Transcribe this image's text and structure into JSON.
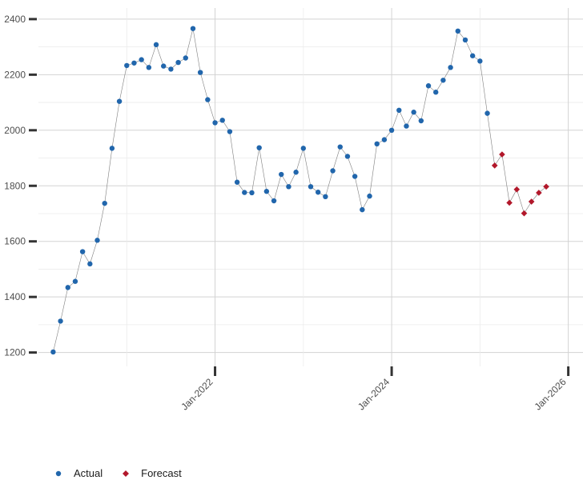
{
  "chart_data": {
    "type": "line",
    "title": "",
    "xlabel": "",
    "ylabel": "",
    "y_ticks": [
      1200,
      1400,
      1600,
      1800,
      2000,
      2200,
      2400
    ],
    "x_ticks": [
      "Jan-2022",
      "Jan-2024",
      "Jan-2026"
    ],
    "ylim": [
      1150,
      2440
    ],
    "xlim": [
      "2020-01",
      "2026-03"
    ],
    "grid": true,
    "legend_position": "bottom-left",
    "colors": {
      "actual": "#2166ac",
      "forecast": "#b2182b",
      "line": "#7f7f7f"
    },
    "series": [
      {
        "name": "Actual",
        "marker": "circle",
        "points": [
          [
            "2020-03",
            1202
          ],
          [
            "2020-04",
            1313
          ],
          [
            "2020-05",
            1434
          ],
          [
            "2020-06",
            1456
          ],
          [
            "2020-07",
            1563
          ],
          [
            "2020-08",
            1519
          ],
          [
            "2020-09",
            1604
          ],
          [
            "2020-10",
            1737
          ],
          [
            "2020-11",
            1935
          ],
          [
            "2020-12",
            2104
          ],
          [
            "2021-01",
            2233
          ],
          [
            "2021-02",
            2242
          ],
          [
            "2021-03",
            2254
          ],
          [
            "2021-04",
            2226
          ],
          [
            "2021-05",
            2308
          ],
          [
            "2021-06",
            2231
          ],
          [
            "2021-07",
            2220
          ],
          [
            "2021-08",
            2244
          ],
          [
            "2021-09",
            2260
          ],
          [
            "2021-10",
            2366
          ],
          [
            "2021-11",
            2208
          ],
          [
            "2021-12",
            2110
          ],
          [
            "2022-01",
            2027
          ],
          [
            "2022-02",
            2036
          ],
          [
            "2022-03",
            1995
          ],
          [
            "2022-04",
            1813
          ],
          [
            "2022-05",
            1776
          ],
          [
            "2022-06",
            1775
          ],
          [
            "2022-07",
            1937
          ],
          [
            "2022-08",
            1780
          ],
          [
            "2022-09",
            1746
          ],
          [
            "2022-10",
            1841
          ],
          [
            "2022-11",
            1797
          ],
          [
            "2022-12",
            1849
          ],
          [
            "2023-01",
            1935
          ],
          [
            "2023-02",
            1797
          ],
          [
            "2023-03",
            1777
          ],
          [
            "2023-04",
            1761
          ],
          [
            "2023-05",
            1854
          ],
          [
            "2023-06",
            1940
          ],
          [
            "2023-07",
            1906
          ],
          [
            "2023-08",
            1834
          ],
          [
            "2023-09",
            1714
          ],
          [
            "2023-10",
            1763
          ],
          [
            "2023-11",
            1951
          ],
          [
            "2023-12",
            1966
          ],
          [
            "2024-01",
            2000
          ],
          [
            "2024-02",
            2072
          ],
          [
            "2024-03",
            2015
          ],
          [
            "2024-04",
            2065
          ],
          [
            "2024-05",
            2034
          ],
          [
            "2024-06",
            2160
          ],
          [
            "2024-07",
            2137
          ],
          [
            "2024-08",
            2180
          ],
          [
            "2024-09",
            2226
          ],
          [
            "2024-10",
            2357
          ],
          [
            "2024-11",
            2325
          ],
          [
            "2024-12",
            2268
          ],
          [
            "2025-01",
            2249
          ],
          [
            "2025-02",
            2061
          ]
        ]
      },
      {
        "name": "Forecast",
        "marker": "diamond",
        "points": [
          [
            "2025-03",
            1873
          ],
          [
            "2025-04",
            1913
          ],
          [
            "2025-05",
            1739
          ],
          [
            "2025-06",
            1787
          ],
          [
            "2025-07",
            1701
          ],
          [
            "2025-08",
            1743
          ],
          [
            "2025-09",
            1775
          ],
          [
            "2025-10",
            1797
          ]
        ]
      }
    ]
  }
}
